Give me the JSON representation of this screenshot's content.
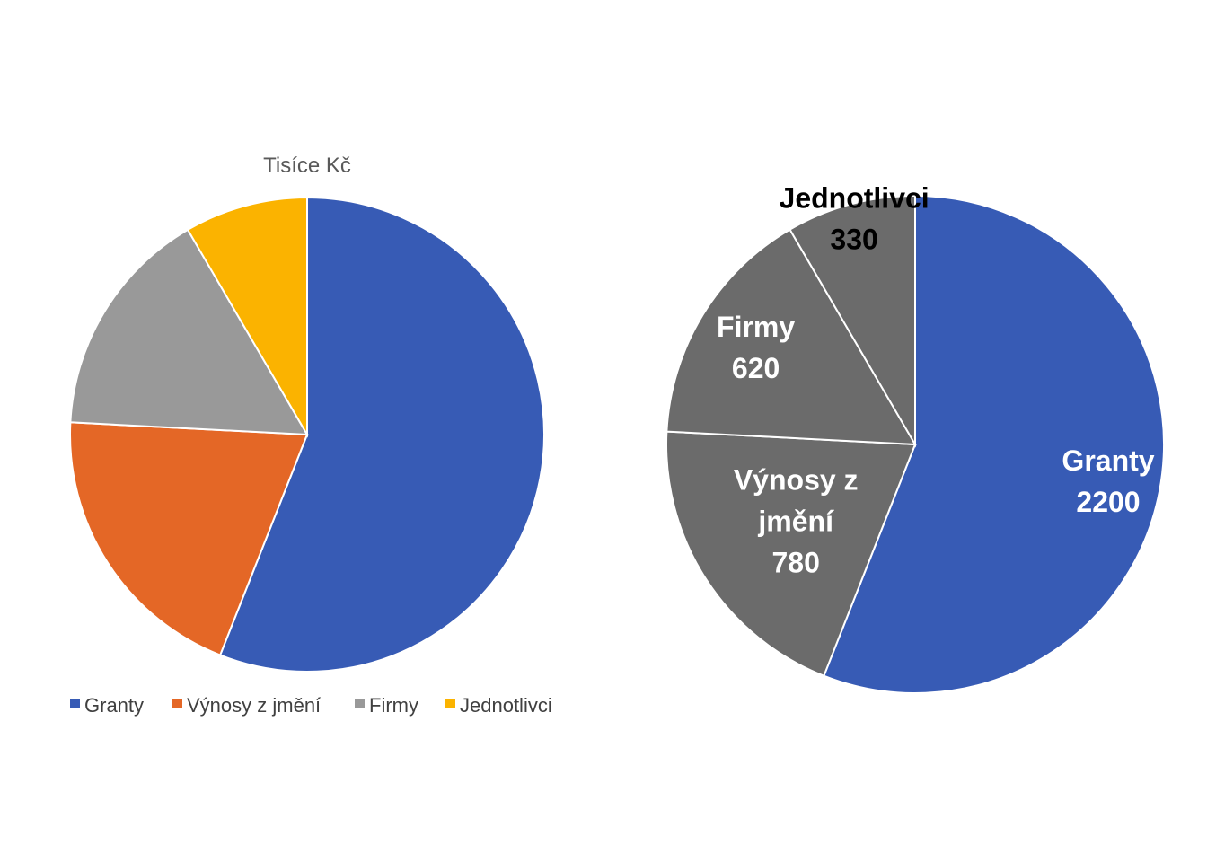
{
  "chart_data": [
    {
      "type": "pie",
      "title": "Tisíce Kč",
      "categories": [
        "Granty",
        "Výnosy z jmění",
        "Firmy",
        "Jednotlivci"
      ],
      "values": [
        2200,
        780,
        620,
        330
      ],
      "colors": [
        "#375BB5",
        "#E46726",
        "#999999",
        "#FBB300"
      ],
      "legend": "bottom",
      "data_labels": false
    },
    {
      "type": "pie",
      "title": "",
      "categories": [
        "Granty",
        "Výnosy z jmění",
        "Firmy",
        "Jednotlivci"
      ],
      "values": [
        2200,
        780,
        620,
        330
      ],
      "colors": [
        "#375BB5",
        "#6B6B6B",
        "#6B6B6B",
        "#6B6B6B"
      ],
      "label_colors": [
        "#ffffff",
        "#ffffff",
        "#ffffff",
        "#000000"
      ],
      "legend": "none",
      "data_labels": true
    }
  ]
}
